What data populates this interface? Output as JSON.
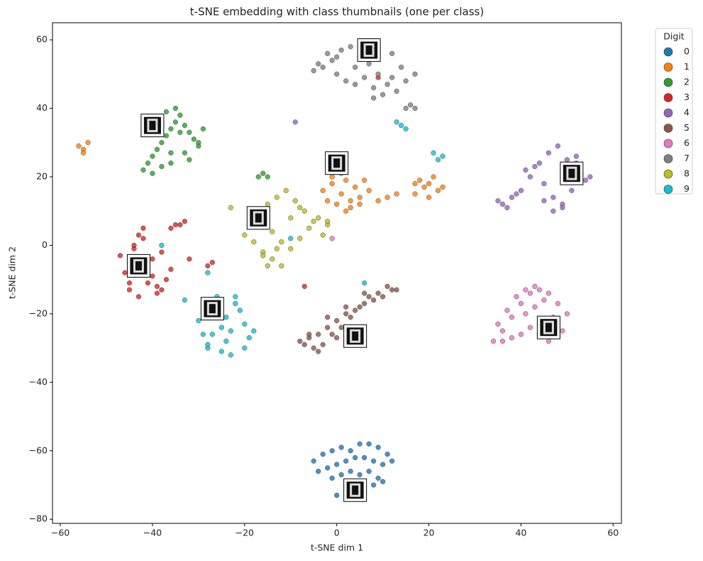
{
  "chart_data": {
    "type": "scatter",
    "title": "t-SNE embedding with class thumbnails (one per class)",
    "xlabel": "t-SNE dim 1",
    "ylabel": "t-SNE dim 2",
    "xlim": [
      -61.7,
      61.8
    ],
    "ylim": [
      -81.2,
      65
    ],
    "xticks": [
      {
        "value": -60,
        "label": "−60"
      },
      {
        "value": -40,
        "label": "−40"
      },
      {
        "value": -20,
        "label": "−20"
      },
      0,
      20,
      40,
      60
    ],
    "yticks": [
      {
        "value": -80,
        "label": "−80"
      },
      {
        "value": -60,
        "label": "−60"
      },
      {
        "value": -40,
        "label": "−40"
      },
      {
        "value": -20,
        "label": "−20"
      },
      0,
      20,
      40,
      60
    ],
    "grid": false,
    "legend_title": "Digit",
    "legend_position": "outside right",
    "series": [
      {
        "name": "0",
        "color": "#1f77b4",
        "x": [
          -5,
          -3,
          -1,
          1,
          3,
          5,
          7,
          9,
          11,
          12,
          -4,
          -2,
          0,
          2,
          4,
          6,
          8,
          10,
          -1,
          1,
          3,
          5,
          7,
          9,
          2,
          4,
          6,
          0,
          8,
          10
        ],
        "y": [
          -63,
          -61,
          -60,
          -59,
          -60,
          -58,
          -58,
          -59,
          -61,
          -63,
          -66,
          -65,
          -64,
          -63,
          -62,
          -62,
          -63,
          -64,
          -68,
          -67,
          -66,
          -67,
          -66,
          -68,
          -70,
          -71,
          -72,
          -73,
          -70,
          -69
        ]
      },
      {
        "name": "1",
        "color": "#ff7f0e",
        "x": [
          -56,
          -55,
          -54,
          -55,
          -3,
          -2,
          -1,
          0,
          1,
          2,
          3,
          4,
          5,
          6,
          7,
          -1,
          1,
          3,
          5,
          2,
          9,
          11,
          13,
          17,
          18,
          19,
          20,
          21,
          22,
          23,
          20,
          17
        ],
        "y": [
          29,
          28,
          30,
          27,
          16,
          13,
          18,
          12,
          15,
          19,
          11,
          17,
          14,
          19,
          16,
          20,
          21,
          13,
          12,
          10,
          13,
          14,
          15,
          15,
          19,
          17,
          18,
          20,
          16,
          17,
          14,
          18
        ]
      },
      {
        "name": "2",
        "color": "#2ca02c",
        "x": [
          -42,
          -41,
          -40,
          -39,
          -38,
          -37,
          -36,
          -35,
          -34,
          -33,
          -32,
          -31,
          -30,
          -29,
          -40,
          -38,
          -36,
          -34,
          -32,
          -30,
          -41,
          -39,
          -37,
          -35,
          -17,
          -16,
          -15,
          -36,
          -33
        ],
        "y": [
          22,
          24,
          26,
          28,
          30,
          32,
          34,
          36,
          38,
          35,
          33,
          31,
          29,
          34,
          21,
          23,
          27,
          33,
          25,
          30,
          34,
          37,
          39,
          40,
          20,
          21,
          20,
          24,
          27
        ]
      },
      {
        "name": "3",
        "color": "#d62728",
        "x": [
          -47,
          -46,
          -45,
          -44,
          -43,
          -42,
          -41,
          -40,
          -39,
          -38,
          -37,
          -36,
          -44,
          -42,
          -40,
          -38,
          -45,
          -43,
          -41,
          -39,
          -36,
          -35,
          -34,
          -33,
          -28,
          -27,
          -32,
          -7,
          9
        ],
        "y": [
          -3,
          -8,
          -11,
          -1,
          3,
          5,
          -6,
          -9,
          -12,
          -13,
          -10,
          -7,
          0,
          2,
          -4,
          -2,
          -13,
          -15,
          -11,
          -14,
          5,
          6,
          6,
          7,
          -6,
          -5,
          -4,
          -12,
          49
        ]
      },
      {
        "name": "4",
        "color": "#9467bd",
        "x": [
          35,
          37,
          39,
          41,
          43,
          45,
          47,
          49,
          51,
          53,
          55,
          36,
          38,
          40,
          42,
          44,
          46,
          48,
          50,
          52,
          54,
          47,
          49,
          45,
          50,
          52,
          -9
        ],
        "y": [
          13,
          11,
          15,
          22,
          23,
          18,
          14,
          12,
          16,
          21,
          20,
          12,
          14,
          16,
          20,
          24,
          27,
          29,
          25,
          24,
          19,
          10,
          11,
          13,
          22,
          26,
          36
        ]
      },
      {
        "name": "5",
        "color": "#8c564b",
        "x": [
          -8,
          -6,
          -4,
          -2,
          0,
          2,
          4,
          6,
          8,
          10,
          12,
          13,
          -7,
          -5,
          -3,
          -1,
          1,
          3,
          5,
          7,
          9,
          11,
          -6,
          -2,
          2,
          6,
          -4,
          0
        ],
        "y": [
          -28,
          -27,
          -26,
          -24,
          -22,
          -20,
          -19,
          -17,
          -16,
          -15,
          -13,
          -13,
          -29,
          -30,
          -29,
          -26,
          -24,
          -21,
          -18,
          -15,
          -14,
          -12,
          -26,
          -21,
          -18,
          -14,
          -31,
          -27
        ]
      },
      {
        "name": "6",
        "color": "#e377c2",
        "x": [
          34,
          36,
          38,
          40,
          42,
          44,
          46,
          48,
          50,
          35,
          37,
          39,
          41,
          43,
          45,
          47,
          49,
          36,
          38,
          40,
          42,
          44,
          46,
          48,
          41,
          43,
          -1
        ],
        "y": [
          -28,
          -25,
          -21,
          -17,
          -14,
          -13,
          -14,
          -17,
          -20,
          -23,
          -19,
          -15,
          -20,
          -18,
          -16,
          -21,
          -25,
          -28,
          -27,
          -26,
          -24,
          -26,
          -28,
          -22,
          -13,
          -12,
          2
        ]
      },
      {
        "name": "7",
        "color": "#7f7f7f",
        "x": [
          -5,
          -3,
          -1,
          1,
          3,
          5,
          7,
          9,
          11,
          13,
          15,
          17,
          -4,
          -2,
          0,
          2,
          4,
          6,
          8,
          10,
          12,
          14,
          0,
          4,
          8,
          12,
          15,
          16,
          17
        ],
        "y": [
          51,
          52,
          54,
          57,
          58,
          55,
          53,
          50,
          47,
          45,
          48,
          50,
          53,
          56,
          50,
          48,
          47,
          49,
          46,
          44,
          49,
          52,
          55,
          52,
          43,
          56,
          40,
          41,
          40
        ]
      },
      {
        "name": "8",
        "color": "#bcbd22",
        "x": [
          -20,
          -18,
          -16,
          -14,
          -12,
          -10,
          -8,
          -6,
          -4,
          -2,
          -19,
          -17,
          -15,
          -13,
          -11,
          -9,
          -7,
          -5,
          -3,
          -16,
          -14,
          -12,
          -10,
          -8,
          -15,
          -13,
          -23,
          -2
        ],
        "y": [
          3,
          1,
          -2,
          -4,
          -6,
          -1,
          2,
          5,
          8,
          6,
          6,
          9,
          12,
          14,
          16,
          13,
          10,
          7,
          3,
          -3,
          4,
          1,
          8,
          11,
          -6,
          -1,
          11,
          7
        ]
      },
      {
        "name": "9",
        "color": "#17becf",
        "x": [
          -30,
          -29,
          -28,
          -27,
          -26,
          -25,
          -24,
          -23,
          -22,
          -21,
          -20,
          -19,
          -18,
          -28,
          -26,
          -24,
          -22,
          -20,
          -27,
          -25,
          -23,
          14,
          15,
          13,
          22,
          23,
          21,
          -28,
          -33,
          -38,
          6,
          -10
        ],
        "y": [
          -22,
          -26,
          -30,
          -17,
          -20,
          -24,
          -28,
          -32,
          -15,
          -19,
          -23,
          -27,
          -25,
          -29,
          -15,
          -21,
          -17,
          -30,
          -26,
          -31,
          -25,
          35,
          34,
          36,
          25,
          26,
          27,
          -8,
          -16,
          0,
          -11,
          2
        ]
      }
    ],
    "thumbnails": {
      "x": [
        4,
        0,
        -40,
        -43,
        51,
        4,
        46,
        7,
        -17,
        -27
      ],
      "y": [
        -71.5,
        24,
        35,
        -6,
        21,
        -26.5,
        -24,
        57,
        8,
        -18.5
      ]
    }
  }
}
